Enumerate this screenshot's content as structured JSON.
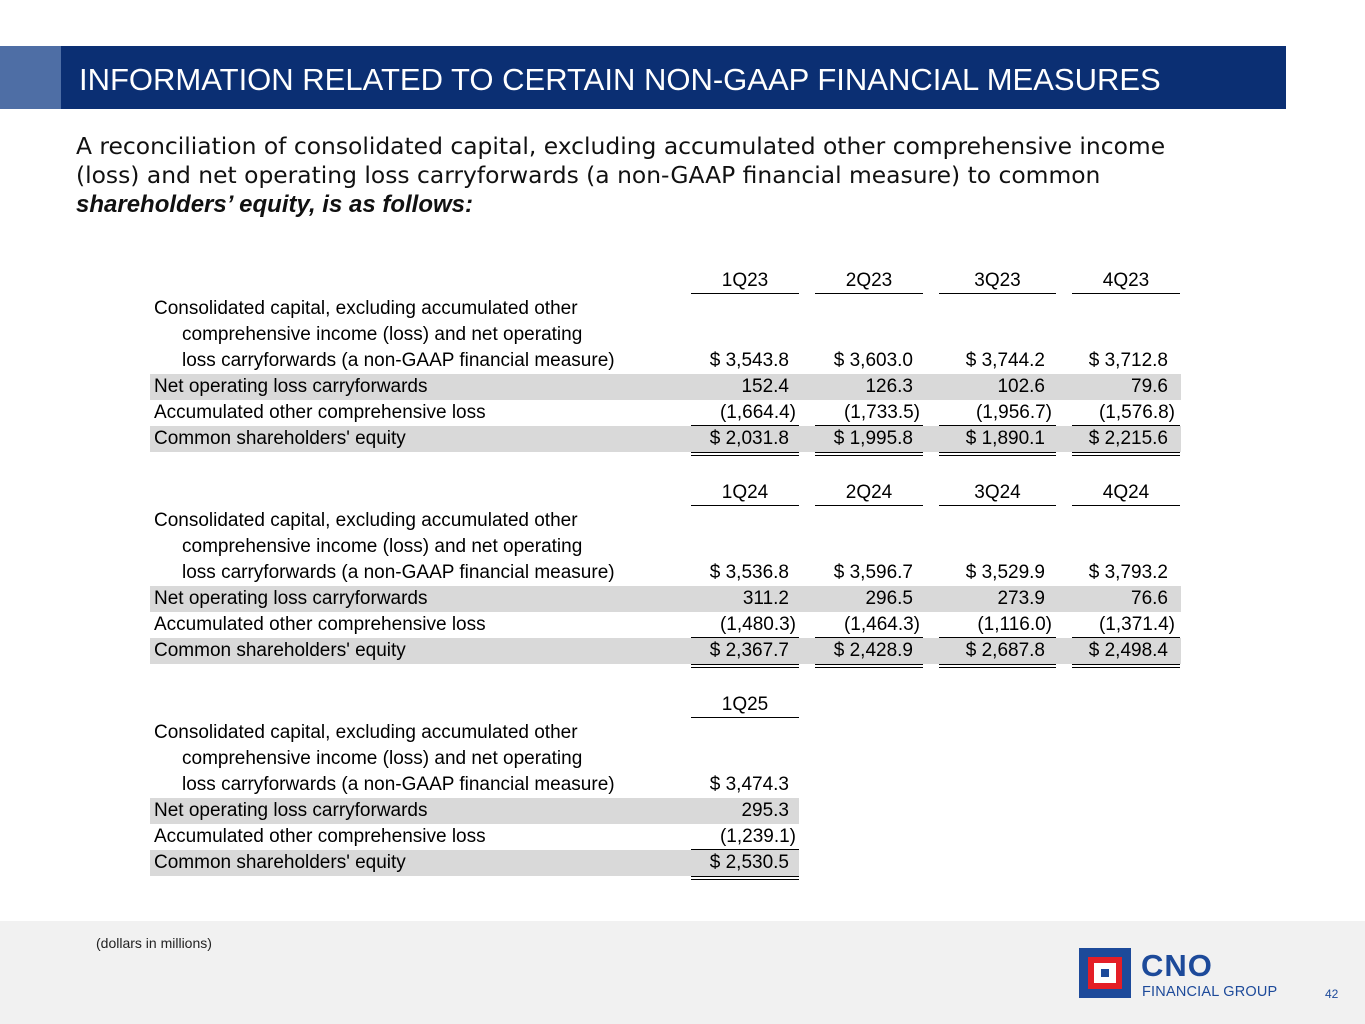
{
  "header": {
    "title": "INFORMATION RELATED TO CERTAIN NON-GAAP FINANCIAL MEASURES"
  },
  "intro": {
    "line1": "A reconciliation of consolidated capital, excluding accumulated other comprehensive income",
    "line2": "(loss) and net operating loss carryforwards (a non-GAAP financial measure) to common",
    "line3": "shareholders’ equity, is as follows:"
  },
  "labels": {
    "cap_1": "Consolidated capital, excluding accumulated other",
    "cap_2": "comprehensive income (loss) and net operating",
    "cap_3": "loss carryforwards (a non-GAAP financial measure)",
    "nol": "Net operating loss carryforwards",
    "aoci": "Accumulated other comprehensive loss",
    "equity": "Common shareholders' equity"
  },
  "tables": [
    {
      "quarters": [
        "1Q23",
        "2Q23",
        "3Q23",
        "4Q23"
      ],
      "capital": [
        "$ 3,543.8",
        "$ 3,603.0",
        "$   3,744.2",
        "$ 3,712.8"
      ],
      "nol": [
        "152.4",
        "126.3",
        "102.6",
        "79.6"
      ],
      "aoci": [
        "(1,664.4)",
        "(1,733.5)",
        "(1,956.7)",
        "(1,576.8)"
      ],
      "equity": [
        "$ 2,031.8",
        "$ 1,995.8",
        "$   1,890.1",
        "$ 2,215.6"
      ]
    },
    {
      "quarters": [
        "1Q24",
        "2Q24",
        "3Q24",
        "4Q24"
      ],
      "capital": [
        "$ 3,536.8",
        "$ 3,596.7",
        "$   3,529.9",
        "$ 3,793.2"
      ],
      "nol": [
        "311.2",
        "296.5",
        "273.9",
        "76.6"
      ],
      "aoci": [
        "(1,480.3)",
        "(1,464.3)",
        "(1,116.0)",
        "(1,371.4)"
      ],
      "equity": [
        "$ 2,367.7",
        "$ 2,428.9",
        "$   2,687.8",
        "$ 2,498.4"
      ]
    },
    {
      "quarters": [
        "1Q25"
      ],
      "capital": [
        "$ 3,474.3"
      ],
      "nol": [
        "295.3"
      ],
      "aoci": [
        "(1,239.1)"
      ],
      "equity": [
        "$ 2,530.5"
      ]
    }
  ],
  "footer": {
    "note": "(dollars in millions)",
    "logo_name": "CNO",
    "logo_sub": "FINANCIAL GROUP",
    "page_number": "42"
  },
  "colors": {
    "title_bar": "#0b2f73",
    "title_accent": "#4e6ea5",
    "row_shade": "#d9d9d9",
    "logo_blue": "#1d4a9a",
    "logo_red": "#e41e26"
  }
}
